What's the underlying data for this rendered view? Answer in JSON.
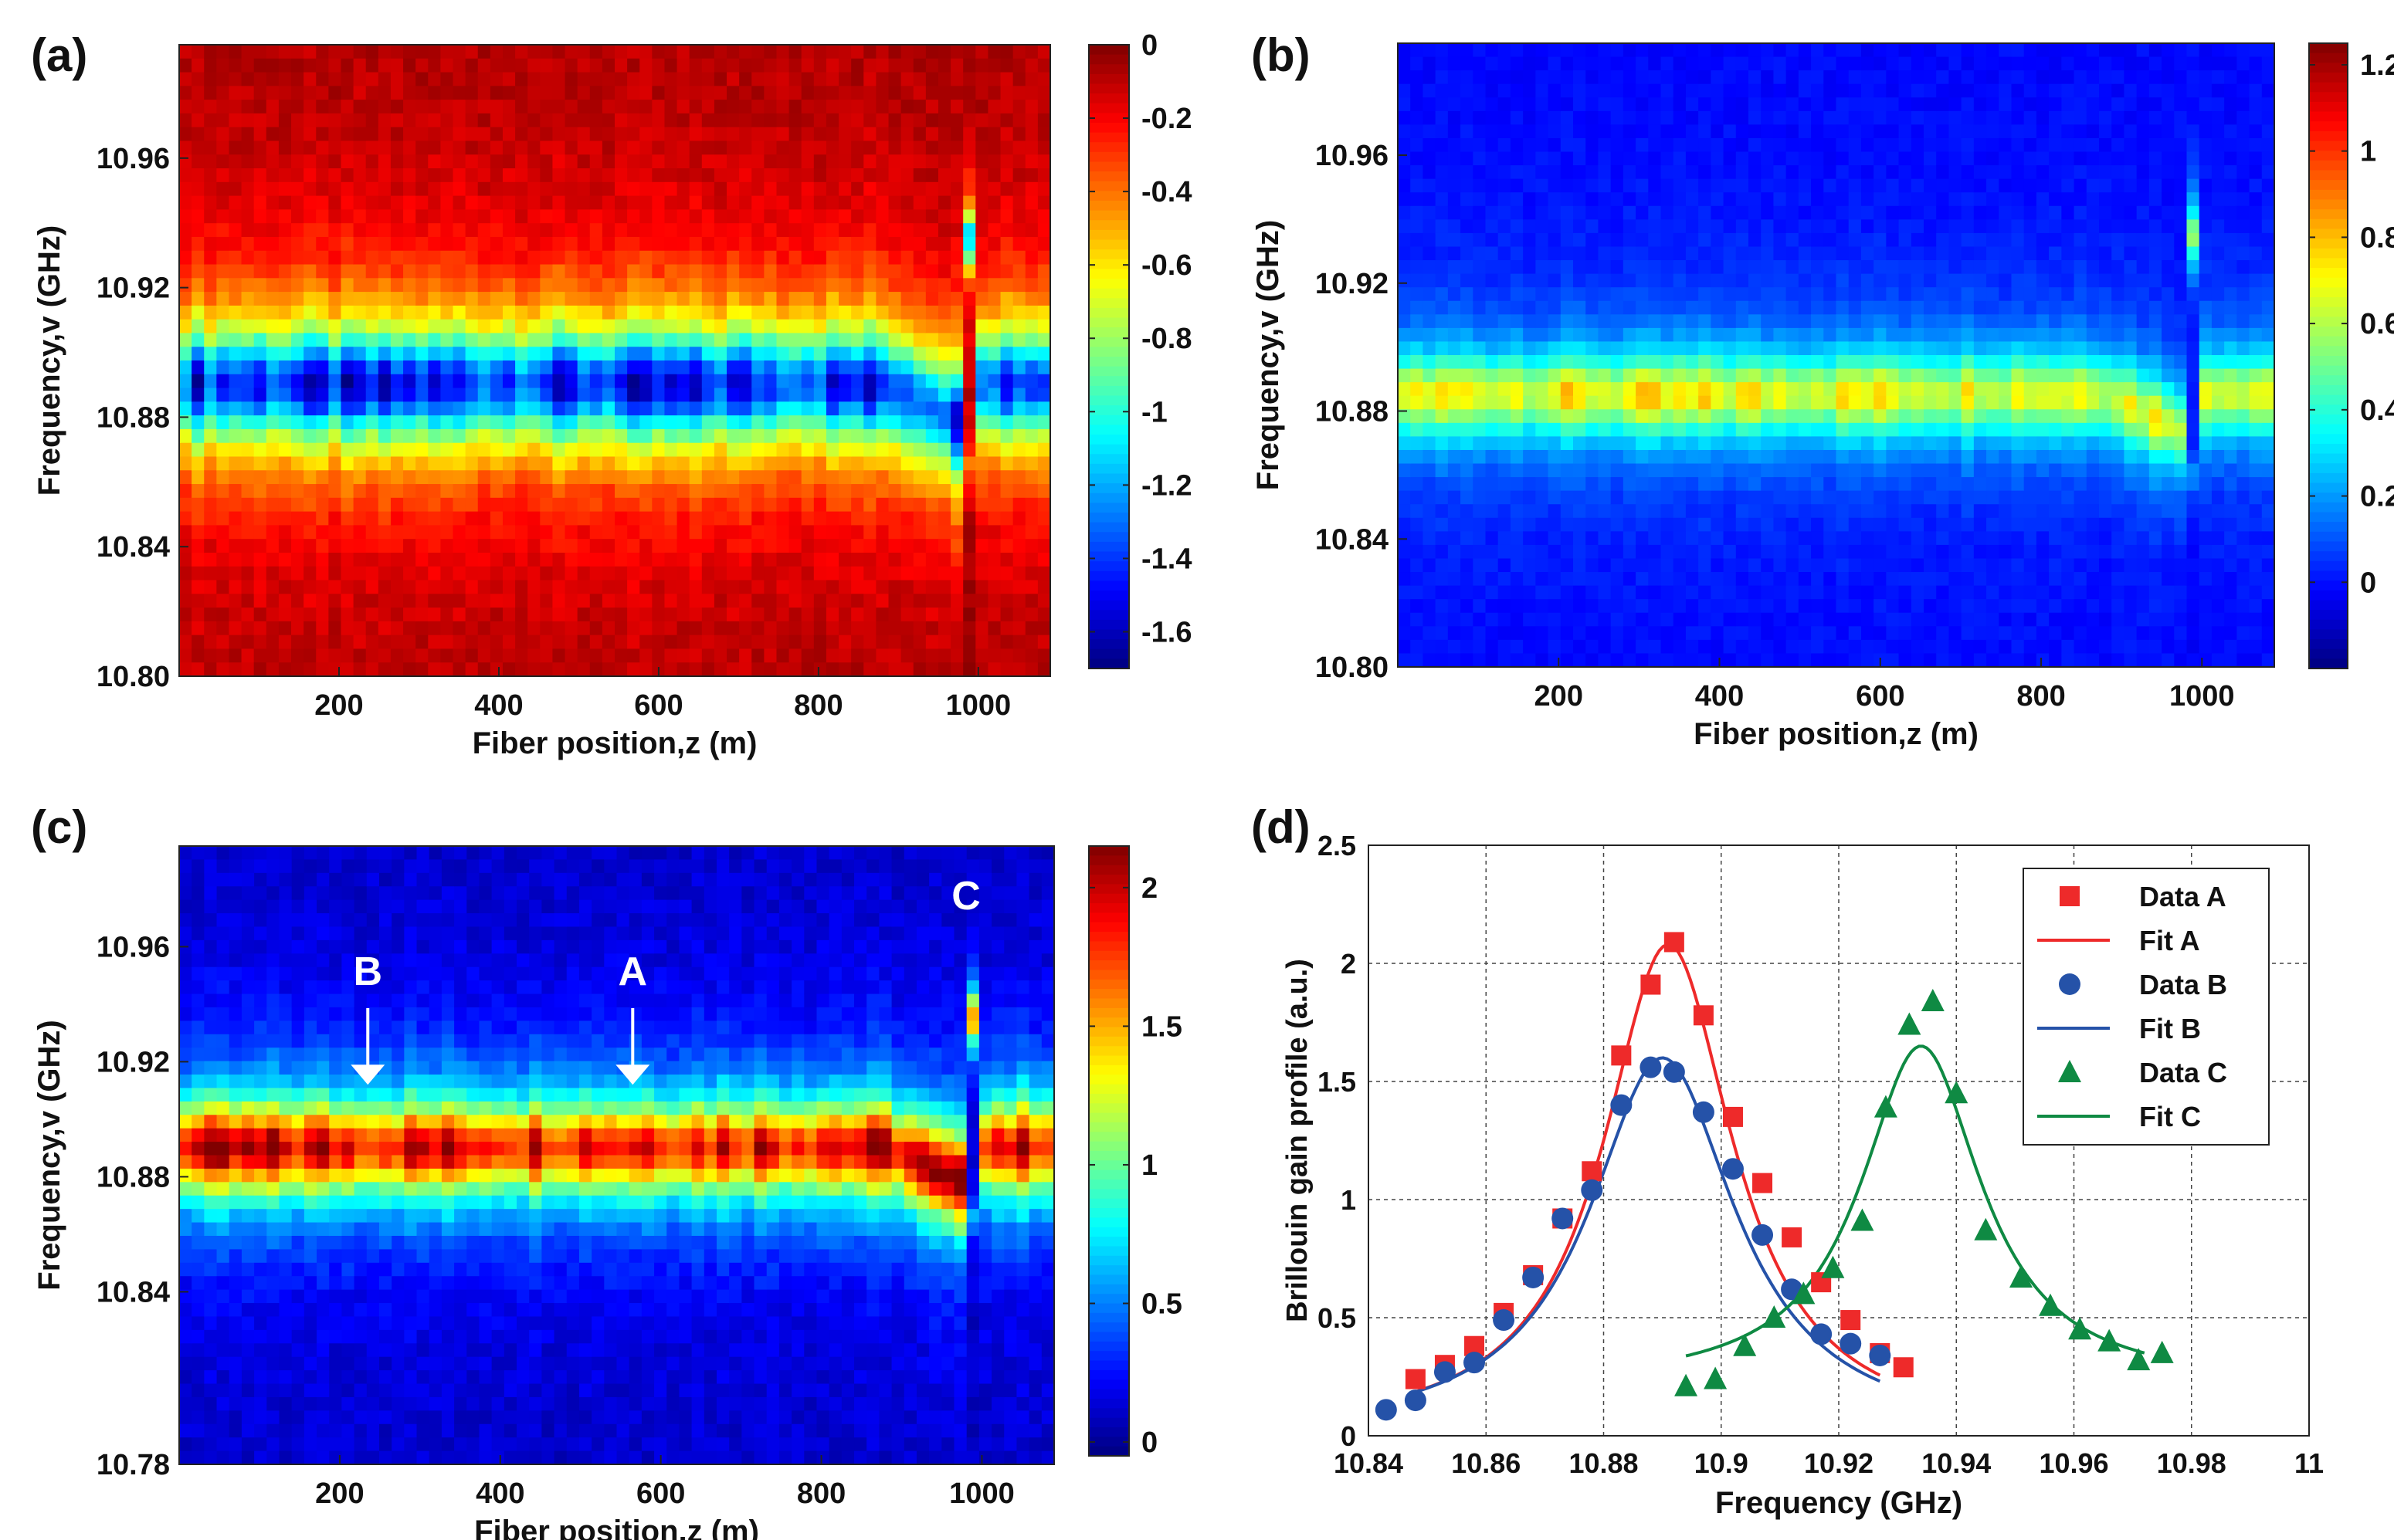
{
  "chart_data": [
    {
      "type": "heatmap",
      "panel_label": "(a)",
      "xlabel": "Fiber position,z (m)",
      "ylabel": "Frequency,v (GHz)",
      "xlim": [
        0,
        1090
      ],
      "ylim": [
        10.8,
        10.995
      ],
      "xticks": [
        200,
        400,
        600,
        800,
        1000
      ],
      "yticks": [
        "10.80",
        "10.84",
        "10.88",
        "10.92",
        "10.96"
      ],
      "colorbar": {
        "range": [
          -1.7,
          0
        ],
        "ticks": [
          "0",
          "-0.2",
          "-0.4",
          "-0.6",
          "-0.8",
          "-1",
          "-1.2",
          "-1.4",
          "-1.6"
        ],
        "tick_values": [
          0,
          -0.2,
          -0.4,
          -0.6,
          -0.8,
          -1,
          -1.2,
          -1.4,
          -1.6
        ]
      },
      "description": "Brillouin loss spectrum: dip centered ~10.89 GHz, background ~ -0.1",
      "model": {
        "center_ghz": 10.89,
        "width_ghz": 0.017,
        "peak": -1.45,
        "baseline": -0.05,
        "anomaly_position_m": 990,
        "anomaly_center_ghz": 10.935,
        "sign": -1
      }
    },
    {
      "type": "heatmap",
      "panel_label": "(b)",
      "xlabel": "Fiber position,z (m)",
      "ylabel": "Frequency,v (GHz)",
      "xlim": [
        0,
        1090
      ],
      "ylim": [
        10.8,
        10.995
      ],
      "xticks": [
        200,
        400,
        600,
        800,
        1000
      ],
      "yticks": [
        "10.80",
        "10.84",
        "10.88",
        "10.92",
        "10.96"
      ],
      "colorbar": {
        "range": [
          -0.2,
          1.25
        ],
        "ticks": [
          "1.2",
          "1",
          "0.8",
          "0.6",
          "0.4",
          "0.2",
          "0"
        ],
        "tick_values": [
          1.2,
          1,
          0.8,
          0.6,
          0.4,
          0.2,
          0
        ]
      },
      "description": "Brillouin gain spectrum: peak ~0.7-1.0 centered ~10.885 GHz, background ~0",
      "model": {
        "center_ghz": 10.885,
        "width_ghz": 0.012,
        "peak": 0.75,
        "baseline": -0.02,
        "anomaly_position_m": 990,
        "anomaly_center_ghz": 10.935,
        "sign": 1
      }
    },
    {
      "type": "heatmap",
      "panel_label": "(c)",
      "xlabel": "Fiber position,z (m)",
      "ylabel": "Frequency,v (GHz)",
      "xlim": [
        0,
        1090
      ],
      "ylim": [
        10.78,
        10.995
      ],
      "xticks": [
        200,
        400,
        600,
        800,
        1000
      ],
      "yticks": [
        "10.78",
        "10.84",
        "10.88",
        "10.92",
        "10.96"
      ],
      "colorbar": {
        "range": [
          -0.05,
          2.15
        ],
        "ticks": [
          "2",
          "1.5",
          "1",
          "0.5",
          "0"
        ],
        "tick_values": [
          2,
          1.5,
          1,
          0.5,
          0
        ]
      },
      "description": "Combined gain profile: peak ~2 centered ~10.89 GHz",
      "model": {
        "center_ghz": 10.89,
        "width_ghz": 0.015,
        "peak": 1.95,
        "baseline": 0.08,
        "anomaly_position_m": 990,
        "anomaly_center_ghz": 10.935,
        "sign": 1
      },
      "annotations": [
        {
          "label": "B",
          "x_m": 235,
          "arrow_tip_ghz": 10.912
        },
        {
          "label": "A",
          "x_m": 565,
          "arrow_tip_ghz": 10.912
        },
        {
          "label": "C",
          "x_m": 990
        }
      ]
    },
    {
      "type": "scatter",
      "panel_label": "(d)",
      "xlabel": "Frequency (GHz)",
      "ylabel": "Brillouin gain profile (a.u.)",
      "xlim": [
        10.84,
        11.0
      ],
      "ylim": [
        0,
        2.5
      ],
      "xticks": [
        "10.84",
        "10.86",
        "10.88",
        "10.9",
        "10.92",
        "10.94",
        "10.96",
        "10.98",
        "11"
      ],
      "yticks": [
        "0",
        "0.5",
        "1",
        "1.5",
        "2",
        "2.5"
      ],
      "grid": true,
      "legend_position": "top-right",
      "series": [
        {
          "name": "Data A",
          "marker": "square",
          "color": "#ee2a2a",
          "x": [
            10.848,
            10.853,
            10.858,
            10.863,
            10.868,
            10.873,
            10.878,
            10.883,
            10.888,
            10.892,
            10.897,
            10.902,
            10.907,
            10.912,
            10.917,
            10.922,
            10.927,
            10.931
          ],
          "y": [
            0.24,
            0.3,
            0.38,
            0.52,
            0.68,
            0.92,
            1.12,
            1.61,
            1.91,
            2.09,
            1.78,
            1.35,
            1.07,
            0.84,
            0.65,
            0.49,
            0.35,
            0.29
          ]
        },
        {
          "name": "Fit A",
          "line": true,
          "color": "#ee2a2a",
          "fit": {
            "center": 10.891,
            "hwhm": 0.0135,
            "amp": 2.08,
            "offset": 0.0,
            "x_range": [
              10.848,
              10.927
            ]
          }
        },
        {
          "name": "Data B",
          "marker": "circle",
          "color": "#2552a8",
          "x": [
            10.843,
            10.848,
            10.853,
            10.858,
            10.863,
            10.868,
            10.873,
            10.878,
            10.883,
            10.888,
            10.892,
            10.897,
            10.902,
            10.907,
            10.912,
            10.917,
            10.922,
            10.927
          ],
          "y": [
            0.11,
            0.15,
            0.27,
            0.31,
            0.49,
            0.67,
            0.92,
            1.04,
            1.4,
            1.56,
            1.54,
            1.37,
            1.13,
            0.85,
            0.62,
            0.43,
            0.39,
            0.34
          ]
        },
        {
          "name": "Fit B",
          "line": true,
          "color": "#2552a8",
          "fit": {
            "center": 10.89,
            "hwhm": 0.0152,
            "amp": 1.6,
            "offset": 0.0,
            "x_range": [
              10.848,
              10.927
            ]
          }
        },
        {
          "name": "Data C",
          "marker": "triangle",
          "color": "#0f8a43",
          "x": [
            10.894,
            10.899,
            10.904,
            10.909,
            10.914,
            10.919,
            10.924,
            10.928,
            10.932,
            10.936,
            10.94,
            10.945,
            10.951,
            10.956,
            10.961,
            10.966,
            10.971,
            10.975
          ],
          "y": [
            0.21,
            0.24,
            0.38,
            0.5,
            0.6,
            0.71,
            0.91,
            1.39,
            1.74,
            1.84,
            1.45,
            0.87,
            0.67,
            0.55,
            0.45,
            0.4,
            0.32,
            0.35
          ]
        },
        {
          "name": "Fit C",
          "line": true,
          "color": "#0f8a43",
          "fit": {
            "center": 10.934,
            "hwhm": 0.0125,
            "amp": 1.65,
            "offset": 0.21,
            "x_range": [
              10.894,
              10.972
            ]
          }
        }
      ]
    }
  ]
}
